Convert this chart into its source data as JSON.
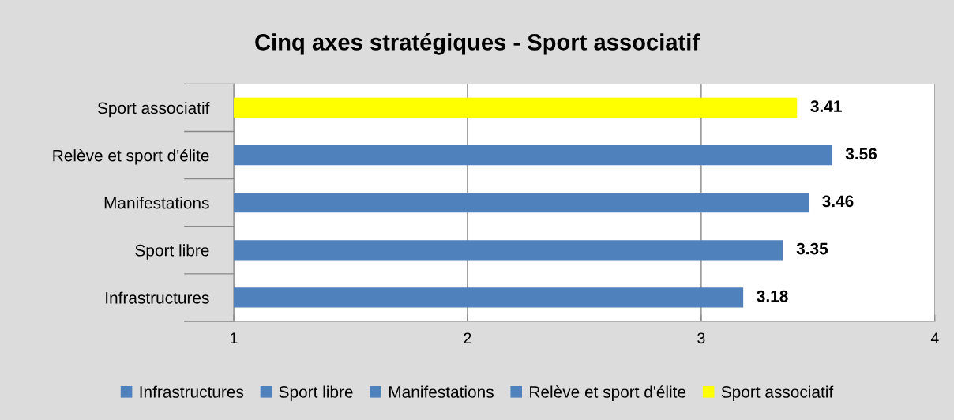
{
  "chart_data": {
    "type": "bar",
    "orientation": "horizontal",
    "title": "Cinq axes stratégiques - Sport associatif",
    "categories": [
      "Sport associatif",
      "Relève et sport d'élite",
      "Manifestations",
      "Sport libre",
      "Infrastructures"
    ],
    "series": [
      {
        "name": "Infrastructures",
        "color": "#4f81bd",
        "values": [
          null,
          null,
          null,
          null,
          3.18
        ]
      },
      {
        "name": "Sport libre",
        "color": "#4f81bd",
        "values": [
          null,
          null,
          null,
          3.35,
          null
        ]
      },
      {
        "name": "Manifestations",
        "color": "#4f81bd",
        "values": [
          null,
          null,
          3.46,
          null,
          null
        ]
      },
      {
        "name": "Relève et sport d'élite",
        "color": "#4f81bd",
        "values": [
          null,
          3.56,
          null,
          null,
          null
        ]
      },
      {
        "name": "Sport associatif",
        "color": "#ffff00",
        "values": [
          3.41,
          null,
          null,
          null,
          null
        ]
      }
    ],
    "xlim": [
      1,
      4
    ],
    "xticks": [
      1,
      2,
      3,
      4
    ],
    "grid": "x",
    "data_labels": true,
    "legend": "bottom"
  }
}
